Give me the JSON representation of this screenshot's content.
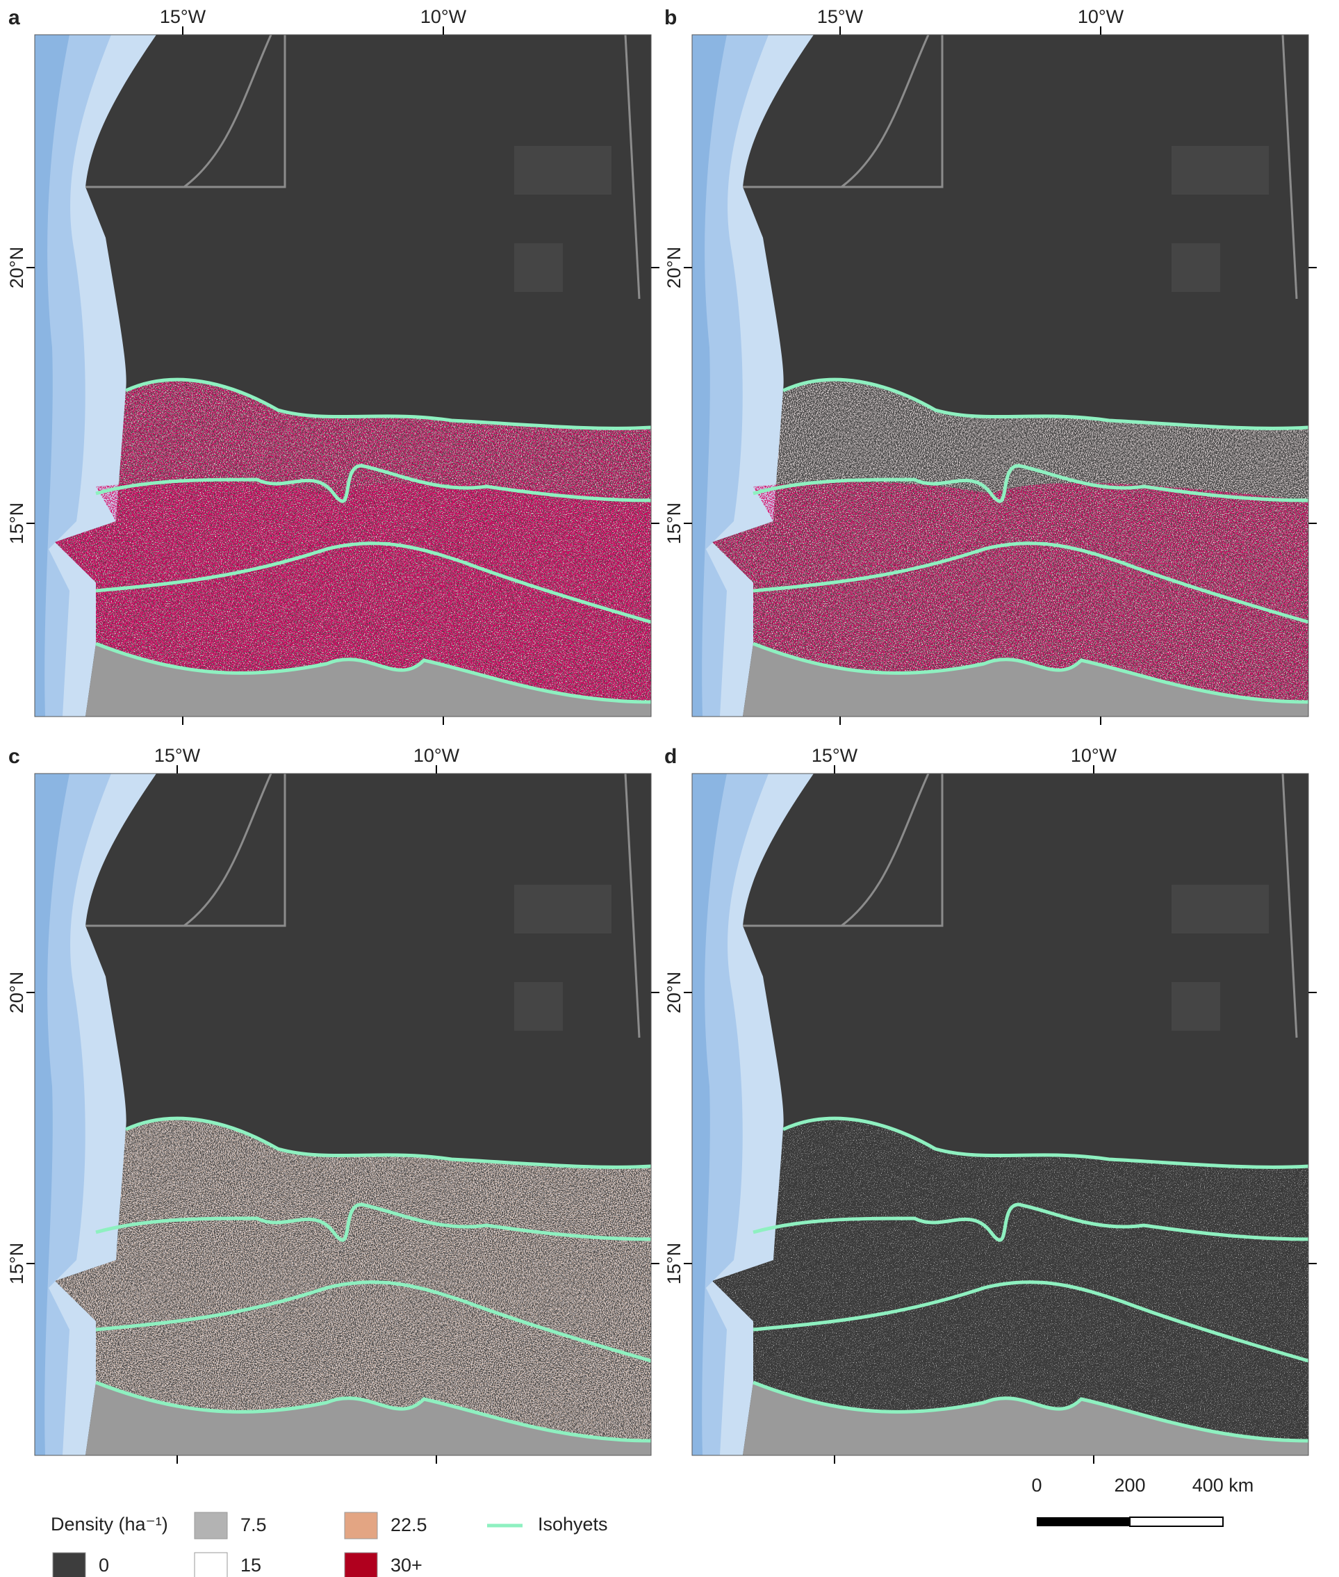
{
  "panels": [
    {
      "label": "a",
      "lon_labels": [
        "15°W",
        "10°W"
      ],
      "lat_labels": [
        "20°N",
        "15°N"
      ]
    },
    {
      "label": "b",
      "lon_labels": [
        "15°W",
        "10°W"
      ],
      "lat_labels": [
        "20°N",
        "15°N"
      ]
    },
    {
      "label": "c",
      "lon_labels": [
        "15°W",
        "10°W"
      ],
      "lat_labels": [
        "20°N",
        "15°N"
      ]
    },
    {
      "label": "d",
      "lon_labels": [
        "15°W",
        "10°W"
      ],
      "lat_labels": [
        "20°N",
        "15°N"
      ]
    }
  ],
  "legend": {
    "title": "Density (ha⁻¹)",
    "items": [
      {
        "label": "0",
        "color": "#3d3d3d"
      },
      {
        "label": "7.5",
        "color": "#b3b3b3"
      },
      {
        "label": "15",
        "color": "#ffffff"
      },
      {
        "label": "22.5",
        "color": "#e3a583"
      },
      {
        "label": "30+",
        "color": "#b0001e"
      }
    ],
    "isohyets": {
      "label": "Isohyets",
      "color": "#8ef0c0"
    }
  },
  "scale_bar": {
    "labels": [
      "0",
      "200",
      "400 km"
    ]
  }
}
